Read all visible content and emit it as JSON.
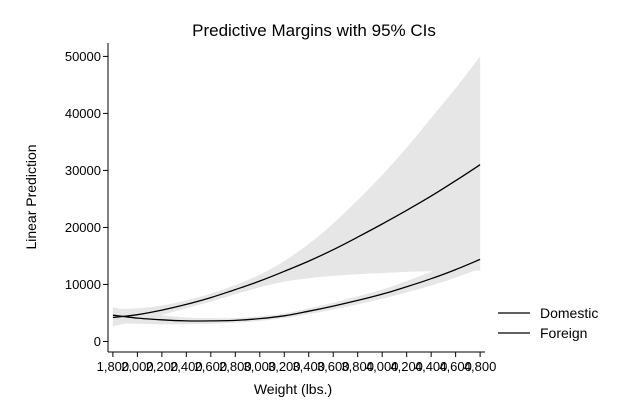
{
  "chart_data": {
    "type": "line",
    "title": "Predictive Margins with 95% CIs",
    "xlabel": "Weight (lbs.)",
    "ylabel": "Linear Prediction",
    "xlim": [
      1760,
      4840
    ],
    "ylim": [
      -1500,
      52000
    ],
    "x_ticks": [
      1800,
      2000,
      2200,
      2400,
      2600,
      2800,
      3000,
      3200,
      3400,
      3600,
      3800,
      4000,
      4200,
      4400,
      4600,
      4800
    ],
    "x_tick_labels": [
      "1,800",
      "2,000",
      "2,200",
      "2,400",
      "2,600",
      "2,800",
      "3,000",
      "3,200",
      "3,400",
      "3,600",
      "3,800",
      "4,000",
      "4,200",
      "4,400",
      "4,600",
      "4,800"
    ],
    "y_ticks": [
      0,
      10000,
      20000,
      30000,
      40000,
      50000
    ],
    "y_tick_labels": [
      "0",
      "10000",
      "20000",
      "30000",
      "40000",
      "50000"
    ],
    "grid": false,
    "legend_position": "right",
    "colors": {
      "line": "#000000",
      "ci_band": "#e6e6e6"
    },
    "x": [
      1800,
      2000,
      2200,
      2400,
      2600,
      2800,
      3000,
      3200,
      3400,
      3600,
      3800,
      4000,
      4200,
      4400,
      4600,
      4800
    ],
    "series": [
      {
        "name": "Domestic",
        "values": [
          4200,
          4700,
          5500,
          6500,
          7700,
          9100,
          10600,
          12300,
          14100,
          16100,
          18300,
          20600,
          23000,
          25500,
          28200,
          31000
        ],
        "ci_lower": [
          2700,
          3600,
          4700,
          5800,
          7000,
          8300,
          9500,
          10500,
          11100,
          11500,
          11800,
          12000,
          12200,
          12300,
          12400,
          12400
        ],
        "ci_upper": [
          5700,
          5800,
          6300,
          7200,
          8400,
          9900,
          11700,
          14100,
          17100,
          20700,
          24800,
          29200,
          34000,
          39200,
          44400,
          50000
        ]
      },
      {
        "name": "Foreign",
        "values": [
          4600,
          4100,
          3800,
          3600,
          3600,
          3700,
          4000,
          4500,
          5300,
          6200,
          7200,
          8300,
          9600,
          11000,
          12600,
          14400
        ],
        "ci_lower": [
          3200,
          3100,
          3000,
          3000,
          3100,
          3300,
          3600,
          4100,
          4800,
          5600,
          6500,
          7500,
          8600,
          9800,
          11200,
          12800
        ],
        "ci_upper": [
          6000,
          5100,
          4600,
          4200,
          4100,
          4100,
          4400,
          4900,
          5800,
          6800,
          7900,
          9100,
          10600,
          12200,
          14000,
          16000
        ]
      }
    ]
  }
}
